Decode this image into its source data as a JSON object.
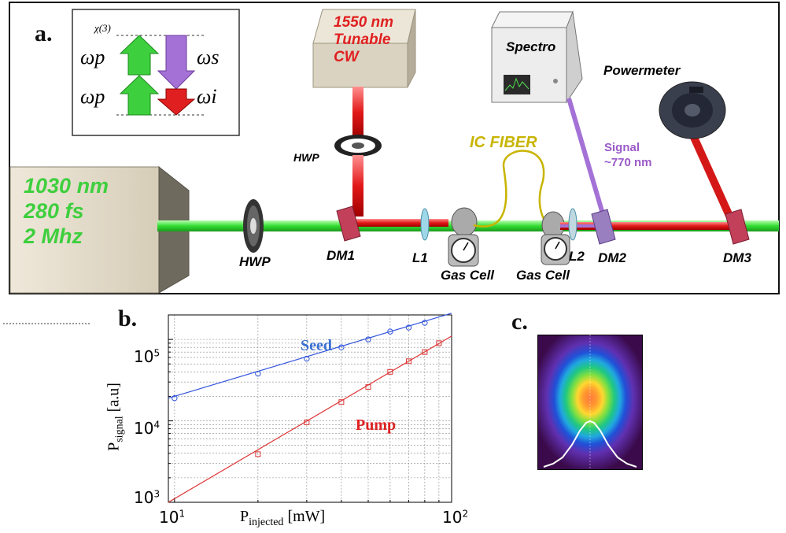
{
  "panel_a": {
    "letter": "a.",
    "chi_label": "χ(3)",
    "omega_p_top": "ωp",
    "omega_p_bottom": "ωp",
    "omega_s": "ωs",
    "omega_i": "ωi",
    "laser_source": {
      "line1": "1030 nm",
      "line2": "280 fs",
      "line3": "2 Mhz"
    },
    "cw_source": {
      "line1": "1550 nm",
      "line2": "Tunable",
      "line3": "CW"
    },
    "spectro": "Spectro",
    "powermeter": "Powermeter",
    "fiber": "IC FIBER",
    "signal": {
      "line1": "Signal",
      "line2": "~770 nm"
    },
    "labels": {
      "hwp_vertical": "HWP",
      "hwp_main": "HWP",
      "dm1": "DM1",
      "l1": "L1",
      "gas_cell_1": "Gas Cell",
      "gas_cell_2": "Gas Cell",
      "l2": "L2",
      "dm2": "DM2",
      "dm3": "DM3"
    },
    "colors": {
      "pump": "#33cc33",
      "seed": "#e02020",
      "signal": "#9b59c9",
      "fiber": "#c8b400"
    }
  },
  "panel_b": {
    "letter": "b.",
    "series_labels": {
      "seed": "Seed",
      "pump": "Pump"
    },
    "colors": {
      "seed": "#3355dd",
      "pump": "#dd3333"
    },
    "x_tick_labels": [
      {
        "base": "10",
        "exp": "1"
      },
      {
        "base": "10",
        "exp": "2"
      }
    ],
    "y_tick_labels": [
      {
        "base": "10",
        "exp": "3"
      },
      {
        "base": "10",
        "exp": "4"
      },
      {
        "base": "10",
        "exp": "5"
      }
    ]
  },
  "panel_c": {
    "letter": "c."
  },
  "chart_data": {
    "type": "scatter",
    "xlabel": "P_injected [mW]",
    "ylabel": "P_signal [a.u]",
    "xscale": "log",
    "yscale": "log",
    "xlim": [
      9.5,
      100
    ],
    "ylim": [
      1000,
      200000
    ],
    "grid": true,
    "series": [
      {
        "name": "Seed",
        "x": [
          10,
          20,
          30,
          40,
          50,
          60,
          70,
          80
        ],
        "y": [
          19000,
          38000,
          58000,
          80000,
          100000,
          125000,
          140000,
          160000
        ],
        "fit": [
          [
            9.5,
            19000
          ],
          [
            100,
            210000
          ]
        ]
      },
      {
        "name": "Pump",
        "x": [
          20,
          30,
          40,
          50,
          60,
          70,
          80,
          90
        ],
        "y": [
          3900,
          9600,
          17000,
          26000,
          40000,
          54000,
          70000,
          90000
        ],
        "fit": [
          [
            9.5,
            1000
          ],
          [
            100,
            110000
          ]
        ]
      }
    ]
  }
}
